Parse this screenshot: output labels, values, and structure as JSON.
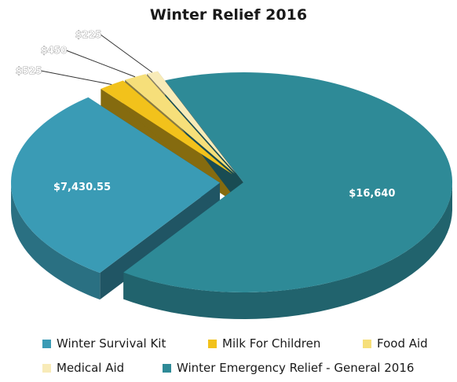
{
  "chart_data": {
    "type": "pie",
    "title": "Winter Relief 2016",
    "slices": [
      {
        "name": "Winter Emergency Relief - General 2016",
        "value": 16640,
        "label": "$16,640",
        "color": "#2e8a97"
      },
      {
        "name": "Winter Survival Kit",
        "value": 7430.55,
        "label": "$7,430.55",
        "color": "#3a9bb5"
      },
      {
        "name": "Milk For Children",
        "value": 525,
        "label": "$525",
        "color": "#f2c21b"
      },
      {
        "name": "Food Aid",
        "value": 450,
        "label": "$450",
        "color": "#f6df7a"
      },
      {
        "name": "Medical Aid",
        "value": 225,
        "label": "$225",
        "color": "#f8ebb8"
      }
    ],
    "legend_position": "bottom",
    "legend": [
      {
        "label": "Winter Survival Kit",
        "color": "#3a9bb5"
      },
      {
        "label": "Milk For Children",
        "color": "#f2c21b"
      },
      {
        "label": "Food Aid",
        "color": "#f6df7a"
      },
      {
        "label": "Medical Aid",
        "color": "#f8ebb8"
      },
      {
        "label": "Winter Emergency Relief - General 2016",
        "color": "#2e8a97"
      }
    ]
  }
}
